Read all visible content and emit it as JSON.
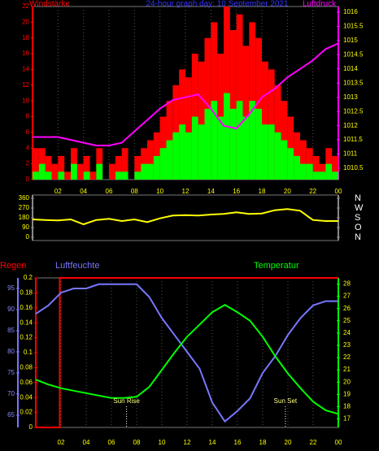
{
  "chart_data": [
    {
      "type": "combo",
      "title": "24-hour graph day: 10 September 2021",
      "title_color": "#3333ff",
      "xlim": [
        0,
        24
      ],
      "xticks": [
        {
          "value": 2,
          "label": "02"
        },
        {
          "value": 4,
          "label": "04"
        },
        {
          "value": 6,
          "label": "06"
        },
        {
          "value": 8,
          "label": "08"
        },
        10,
        12,
        14,
        16,
        18,
        20,
        22,
        {
          "value": 24,
          "label": "00"
        }
      ],
      "grid": true,
      "axes": [
        {
          "label": "Windstärke",
          "side": "left",
          "color": "#ff0000",
          "tick_color": "#ff0000",
          "lim": [
            0,
            22
          ],
          "ticks": [
            0,
            2,
            4,
            6,
            8,
            10,
            12,
            14,
            16,
            18,
            20,
            22
          ]
        },
        {
          "label": "Luftdruck",
          "side": "right",
          "color": "#ff00ff",
          "tick_color": "#ffff00",
          "lim": [
            1010.1,
            1016.2
          ],
          "ticks": [
            1010.5,
            1011,
            1011.5,
            1012,
            1012.5,
            1013,
            1013.5,
            1014,
            1014.5,
            1015,
            1015.5,
            1016
          ]
        }
      ],
      "series": [
        {
          "style": "bar",
          "axis": 0,
          "color": "#ff0000",
          "x": [
            0,
            0.5,
            1,
            1.5,
            2,
            2.5,
            3,
            3.5,
            4,
            4.5,
            5,
            5.5,
            6,
            6.5,
            7,
            7.5,
            8,
            8.5,
            9,
            9.5,
            10,
            10.5,
            11,
            11.5,
            12,
            12.5,
            13,
            13.5,
            14,
            14.5,
            15,
            15.5,
            16,
            16.5,
            17,
            17.5,
            18,
            18.5,
            19,
            19.5,
            20,
            20.5,
            21,
            21.5,
            22,
            22.5,
            23,
            23.5
          ],
          "values": [
            4,
            4,
            3,
            2,
            3,
            1,
            4,
            2,
            3,
            1,
            4,
            0,
            2,
            3,
            4,
            0,
            3,
            4,
            5,
            6,
            8,
            10,
            12,
            14,
            13,
            16,
            15,
            18,
            20,
            16,
            22,
            19,
            21,
            17,
            20,
            18,
            15,
            14,
            12,
            10,
            8,
            6,
            5,
            4,
            3,
            2,
            4,
            3
          ]
        },
        {
          "style": "bar",
          "axis": 0,
          "color": "#00ff00",
          "x": [
            0,
            0.5,
            1,
            1.5,
            2,
            2.5,
            3,
            3.5,
            4,
            4.5,
            5,
            5.5,
            6,
            6.5,
            7,
            7.5,
            8,
            8.5,
            9,
            9.5,
            10,
            10.5,
            11,
            11.5,
            12,
            12.5,
            13,
            13.5,
            14,
            14.5,
            15,
            15.5,
            16,
            16.5,
            17,
            17.5,
            18,
            18.5,
            19,
            19.5,
            20,
            20.5,
            21,
            21.5,
            22,
            22.5,
            23,
            23.5
          ],
          "values": [
            1,
            2,
            1,
            0,
            1,
            0,
            2,
            0,
            1,
            0,
            2,
            0,
            0,
            1,
            1,
            0,
            1,
            2,
            2,
            3,
            4,
            5,
            6,
            7,
            6,
            8,
            7,
            9,
            10,
            8,
            11,
            9,
            10,
            8,
            10,
            9,
            7,
            7,
            6,
            5,
            4,
            3,
            2,
            2,
            1,
            1,
            2,
            1
          ]
        },
        {
          "style": "line",
          "axis": 1,
          "color": "#ff00ff",
          "x": [
            0,
            1,
            2,
            3,
            4,
            5,
            6,
            7,
            8,
            9,
            10,
            11,
            12,
            13,
            14,
            15,
            16,
            17,
            18,
            19,
            20,
            21,
            22,
            23,
            24
          ],
          "values": [
            1011.6,
            1011.6,
            1011.6,
            1011.5,
            1011.4,
            1011.3,
            1011.3,
            1011.4,
            1011.8,
            1012.2,
            1012.6,
            1012.9,
            1013.0,
            1013.1,
            1012.6,
            1012.0,
            1011.9,
            1012.4,
            1013.0,
            1013.3,
            1013.7,
            1014.0,
            1014.3,
            1014.7,
            1014.9
          ]
        }
      ]
    },
    {
      "type": "line",
      "xlim": [
        0,
        24
      ],
      "axes": [
        {
          "side": "left",
          "color": "#888888",
          "tick_color": "#ffff00",
          "lim": [
            -30,
            390
          ],
          "ticks": [
            0,
            90,
            180,
            270,
            360
          ]
        },
        {
          "side": "right-far",
          "color": "#888888",
          "tick_color": "#ffffff",
          "lim": [
            -30,
            390
          ],
          "ticks": [
            {
              "value": 0,
              "label": "N"
            },
            {
              "value": 90,
              "label": "O"
            },
            {
              "value": 180,
              "label": "S"
            },
            {
              "value": 270,
              "label": "W"
            },
            {
              "value": 360,
              "label": "N"
            }
          ]
        }
      ],
      "series": [
        {
          "style": "line",
          "axis": 0,
          "color": "#ffff00",
          "x": [
            0,
            1,
            2,
            3,
            4,
            5,
            6,
            7,
            8,
            9,
            10,
            11,
            12,
            13,
            14,
            15,
            16,
            17,
            18,
            19,
            20,
            21,
            22,
            23,
            24
          ],
          "values": [
            165,
            160,
            155,
            165,
            120,
            160,
            170,
            150,
            165,
            140,
            175,
            200,
            205,
            200,
            210,
            215,
            230,
            215,
            220,
            250,
            260,
            245,
            160,
            150,
            150
          ]
        }
      ]
    },
    {
      "type": "line",
      "xlim": [
        0,
        24
      ],
      "xticks": [
        {
          "value": 2,
          "label": "02"
        },
        {
          "value": 4,
          "label": "04"
        },
        {
          "value": 6,
          "label": "06"
        },
        {
          "value": 8,
          "label": "08"
        },
        10,
        12,
        14,
        16,
        18,
        20,
        22,
        {
          "value": 24,
          "label": "00"
        }
      ],
      "grid": true,
      "axes": [
        {
          "label": "Regen",
          "side": "left",
          "color": "#ff0000",
          "tick_color": "#ffff00",
          "lim": [
            0,
            0.2
          ],
          "ticks": [
            0,
            0.02,
            0.04,
            0.06,
            0.08,
            0.1,
            0.12,
            0.14,
            0.16,
            0.18,
            0.2
          ]
        },
        {
          "label": "Luftfeuchte",
          "side": "left-outer",
          "color": "#7777ff",
          "tick_color": "#8888ff",
          "lim": [
            62.1,
            97.5
          ],
          "ticks": [
            65,
            70,
            75,
            80,
            85,
            90,
            95
          ]
        },
        {
          "label": "Temperatur",
          "side": "right",
          "color": "#00ff00",
          "tick_color": "#ffff00",
          "lim": [
            16.3,
            28.5
          ],
          "ticks": [
            17,
            18,
            19,
            20,
            21,
            22,
            23,
            24,
            25,
            26,
            27,
            28
          ]
        }
      ],
      "series": [
        {
          "style": "line",
          "axis": 0,
          "color": "#ff0000",
          "x": [
            0,
            1.9,
            1.9,
            24
          ],
          "values": [
            0,
            0,
            0.2,
            0.2
          ]
        },
        {
          "style": "line",
          "axis": 1,
          "color": "#7777ff",
          "x": [
            0,
            1,
            2,
            3,
            4,
            5,
            6,
            7,
            8,
            9,
            10,
            11,
            12,
            13,
            14,
            15,
            16,
            17,
            18,
            19,
            20,
            21,
            22,
            23,
            24
          ],
          "values": [
            89,
            91,
            94,
            95,
            95,
            96,
            96,
            96,
            96,
            93,
            88,
            84,
            80,
            76,
            68,
            63.5,
            66,
            69,
            75,
            79,
            84,
            88,
            91,
            92,
            92
          ]
        },
        {
          "style": "line",
          "axis": 2,
          "color": "#00ff00",
          "x": [
            0,
            1,
            2,
            3,
            4,
            5,
            6,
            7,
            8,
            9,
            10,
            11,
            12,
            13,
            14,
            15,
            16,
            17,
            18,
            19,
            20,
            21,
            22,
            23,
            24
          ],
          "values": [
            20.2,
            19.8,
            19.5,
            19.3,
            19.1,
            18.9,
            18.7,
            18.7,
            18.8,
            19.6,
            21.0,
            22.4,
            23.7,
            24.7,
            25.7,
            26.3,
            25.7,
            25.0,
            23.7,
            22.1,
            20.7,
            19.5,
            18.4,
            17.7,
            17.4
          ]
        }
      ],
      "annotations": [
        {
          "text": "Sun Rise",
          "x": 7.2
        },
        {
          "text": "Sun Set",
          "x": 19.8
        }
      ]
    }
  ]
}
